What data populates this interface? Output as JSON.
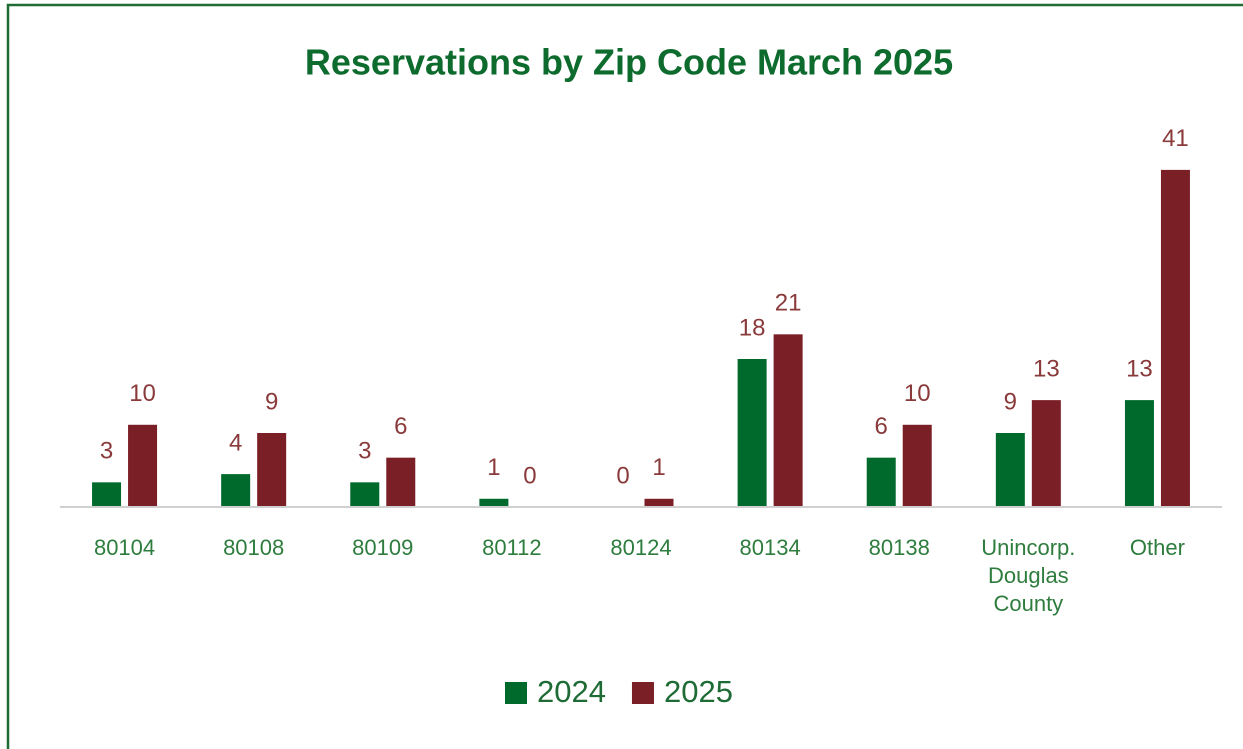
{
  "chart_data": {
    "type": "bar",
    "title": "Reservations by Zip Code March 2025",
    "categories": [
      "80104",
      "80108",
      "80109",
      "80112",
      "80124",
      "80134",
      "80138",
      "Unincorp. Douglas County",
      "Other"
    ],
    "series": [
      {
        "name": "2024",
        "color": "#006a2c",
        "values": [
          3,
          4,
          3,
          1,
          0,
          18,
          6,
          9,
          13
        ]
      },
      {
        "name": "2025",
        "color": "#7a1f26",
        "values": [
          10,
          9,
          6,
          0,
          1,
          21,
          10,
          13,
          41
        ]
      }
    ],
    "ylim": [
      0,
      45
    ],
    "legend": "bottom"
  }
}
